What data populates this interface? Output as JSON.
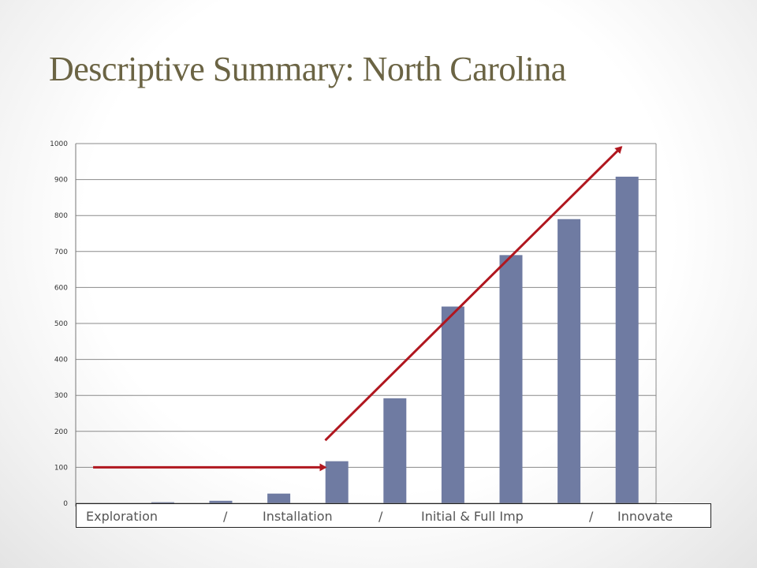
{
  "slide": {
    "title": "Descriptive Summary: North Carolina"
  },
  "phase_bar": {
    "exploration": "Exploration",
    "sep1": "/",
    "installation": "Installation",
    "sep2": "/",
    "initial": "Initial & Full Imp",
    "sep3": "/",
    "innovate": "Innovate"
  },
  "colors": {
    "bar": "#6f7ba2",
    "arrow": "#b0171f",
    "title": "#6b6444"
  },
  "chart_data": {
    "type": "bar",
    "categories": [
      "",
      "",
      "",
      "",
      "",
      "",
      "",
      "",
      "",
      ""
    ],
    "values": [
      0,
      3,
      7,
      27,
      117,
      292,
      547,
      690,
      790,
      908
    ],
    "ylim": [
      0,
      1000
    ],
    "yticks": [
      "0",
      "100",
      "200",
      "300",
      "400",
      "500",
      "600",
      "700",
      "800",
      "900",
      "1000"
    ],
    "grid": true,
    "legend": "none",
    "annotations": [
      {
        "type": "arrow",
        "description": "horizontal flat trend",
        "from": [
          0.3,
          100
        ],
        "to": [
          4.3,
          100
        ]
      },
      {
        "type": "arrow",
        "description": "rising trend",
        "from": [
          4.3,
          175
        ],
        "to": [
          9.4,
          990
        ]
      }
    ]
  }
}
